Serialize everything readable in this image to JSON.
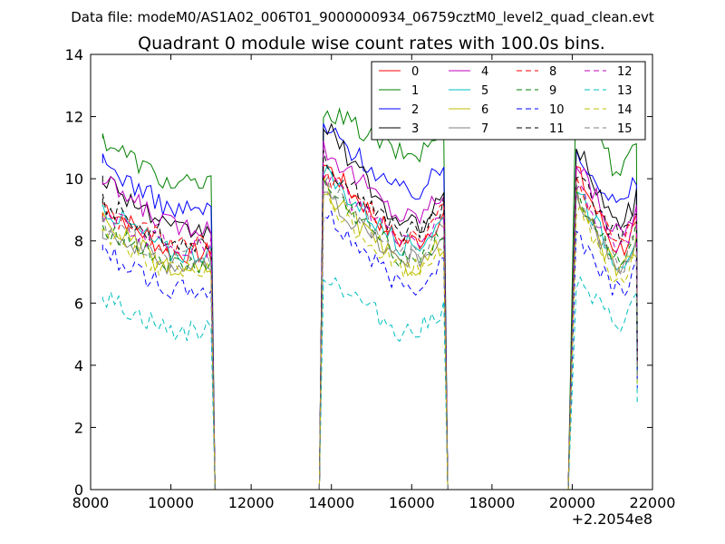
{
  "header": {
    "suptitle": "Data file: modeM0/AS1A02_006T01_9000000934_06759cztM0_level2_quad_clean.evt"
  },
  "chart_data": {
    "type": "line",
    "title": "Quadrant 0 module wise count rates with 100.0s bins.",
    "xlabel": "",
    "ylabel": "",
    "xlim": [
      8000,
      22000
    ],
    "ylim": [
      0,
      14
    ],
    "x_ticks": [
      8000,
      10000,
      12000,
      14000,
      16000,
      18000,
      20000,
      22000
    ],
    "x_tick_labels": [
      "8000",
      "10000",
      "12000",
      "14000",
      "16000",
      "18000",
      "20000",
      "22000"
    ],
    "y_ticks": [
      0,
      2,
      4,
      6,
      8,
      10,
      12,
      14
    ],
    "y_tick_labels": [
      "0",
      "2",
      "4",
      "6",
      "8",
      "10",
      "12",
      "14"
    ],
    "x_offset_label": "+2.2054e8",
    "legend_position": "top-right",
    "segments": [
      {
        "x_start": 8300,
        "x_end": 11000,
        "fall_to_zero_at": 11100
      },
      {
        "x_start": 13800,
        "x_end": 16800,
        "rise_from_zero_at": 13700,
        "fall_to_zero_at": 16900
      },
      {
        "x_start": 20100,
        "x_end": 21600,
        "rise_from_zero_at": 19900
      }
    ],
    "series": [
      {
        "name": "0",
        "color": "#ff0000",
        "dash": "solid",
        "levels": [
          [
            9.2,
            7.6
          ],
          [
            10.5,
            8.0
          ],
          [
            10.3,
            7.8
          ]
        ]
      },
      {
        "name": "1",
        "color": "#008000",
        "dash": "solid",
        "levels": [
          [
            11.3,
            9.8
          ],
          [
            12.3,
            10.8
          ],
          [
            13.3,
            10.3
          ]
        ]
      },
      {
        "name": "2",
        "color": "#0000ff",
        "dash": "solid",
        "levels": [
          [
            10.5,
            9.0
          ],
          [
            11.7,
            9.6
          ],
          [
            11.0,
            9.2
          ]
        ]
      },
      {
        "name": "3",
        "color": "#000000",
        "dash": "solid",
        "levels": [
          [
            10.1,
            8.3
          ],
          [
            11.8,
            8.5
          ],
          [
            11.1,
            8.6
          ]
        ]
      },
      {
        "name": "4",
        "color": "#bf00bf",
        "dash": "solid",
        "levels": [
          [
            9.9,
            8.5
          ],
          [
            11.0,
            8.8
          ],
          [
            10.6,
            8.3
          ]
        ]
      },
      {
        "name": "5",
        "color": "#00bfbf",
        "dash": "solid",
        "levels": [
          [
            9.1,
            7.6
          ],
          [
            10.2,
            7.9
          ],
          [
            9.9,
            7.4
          ]
        ]
      },
      {
        "name": "6",
        "color": "#bfbf00",
        "dash": "solid",
        "levels": [
          [
            8.7,
            7.0
          ],
          [
            9.7,
            7.2
          ],
          [
            9.4,
            7.1
          ]
        ]
      },
      {
        "name": "7",
        "color": "#808080",
        "dash": "solid",
        "levels": [
          [
            8.4,
            7.2
          ],
          [
            9.5,
            7.4
          ],
          [
            9.3,
            7.2
          ]
        ]
      },
      {
        "name": "8",
        "color": "#ff0000",
        "dash": "dashed",
        "levels": [
          [
            8.9,
            7.9
          ],
          [
            10.2,
            8.2
          ],
          [
            9.9,
            8.0
          ]
        ]
      },
      {
        "name": "9",
        "color": "#008000",
        "dash": "dashed",
        "levels": [
          [
            8.5,
            7.2
          ],
          [
            9.8,
            7.5
          ],
          [
            9.5,
            7.5
          ]
        ]
      },
      {
        "name": "10",
        "color": "#0000ff",
        "dash": "dashed",
        "levels": [
          [
            7.7,
            6.4
          ],
          [
            8.9,
            6.6
          ],
          [
            8.3,
            6.5
          ]
        ]
      },
      {
        "name": "11",
        "color": "#000000",
        "dash": "dashed",
        "levels": [
          [
            9.2,
            8.0
          ],
          [
            10.6,
            8.3
          ],
          [
            10.1,
            8.2
          ]
        ]
      },
      {
        "name": "12",
        "color": "#bf00bf",
        "dash": "dashed",
        "levels": [
          [
            8.8,
            7.8
          ],
          [
            10.1,
            8.0
          ],
          [
            9.8,
            7.9
          ]
        ]
      },
      {
        "name": "13",
        "color": "#00bfbf",
        "dash": "dashed",
        "levels": [
          [
            6.2,
            5.1
          ],
          [
            7.0,
            5.1
          ],
          [
            6.7,
            5.4
          ]
        ]
      },
      {
        "name": "14",
        "color": "#bfbf00",
        "dash": "dashed",
        "levels": [
          [
            8.3,
            7.0
          ],
          [
            9.3,
            7.1
          ],
          [
            9.1,
            6.8
          ]
        ]
      },
      {
        "name": "15",
        "color": "#808080",
        "dash": "dashed",
        "levels": [
          [
            8.6,
            7.4
          ],
          [
            9.9,
            7.6
          ],
          [
            9.6,
            7.3
          ]
        ]
      }
    ]
  }
}
